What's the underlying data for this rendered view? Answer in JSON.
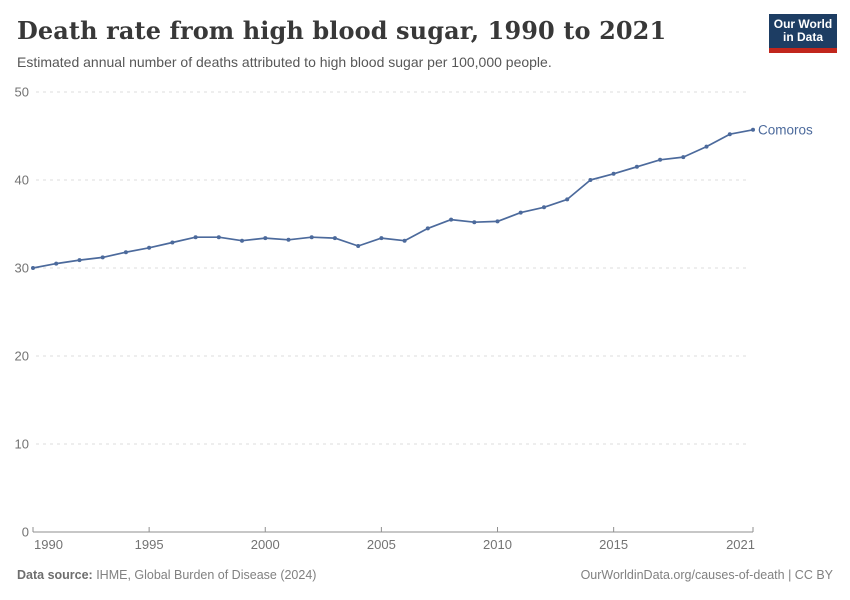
{
  "header": {
    "title": "Death rate from high blood sugar, 1990 to 2021",
    "subtitle": "Estimated annual number of deaths attributed to high blood sugar per 100,000 people.",
    "logo": {
      "line1": "Our World",
      "line2": "in Data"
    }
  },
  "chart_data": {
    "type": "line",
    "title": "Death rate from high blood sugar, 1990 to 2021",
    "xlabel": "",
    "ylabel": "",
    "xlim": [
      1990,
      2021
    ],
    "ylim": [
      0,
      50
    ],
    "grid": "horizontal-dashed",
    "legend_position": "end-of-line-label",
    "x_ticks": [
      1990,
      1995,
      2000,
      2005,
      2010,
      2015,
      2021
    ],
    "y_ticks": [
      0,
      10,
      20,
      30,
      40,
      50
    ],
    "x": [
      1990,
      1991,
      1992,
      1993,
      1994,
      1995,
      1996,
      1997,
      1998,
      1999,
      2000,
      2001,
      2002,
      2003,
      2004,
      2005,
      2006,
      2007,
      2008,
      2009,
      2010,
      2011,
      2012,
      2013,
      2014,
      2015,
      2016,
      2017,
      2018,
      2019,
      2020,
      2021
    ],
    "series": [
      {
        "name": "Comoros",
        "color": "#4C6A9C",
        "values": [
          30.0,
          30.5,
          30.9,
          31.2,
          31.8,
          32.3,
          32.9,
          33.5,
          33.5,
          33.1,
          33.4,
          33.2,
          33.5,
          33.4,
          32.5,
          33.4,
          33.1,
          34.5,
          35.5,
          35.2,
          35.3,
          36.3,
          36.9,
          37.8,
          40.0,
          40.7,
          41.5,
          42.3,
          42.6,
          43.8,
          45.2,
          45.7
        ]
      }
    ],
    "colors": {
      "line": "#4C6A9C",
      "entity_label": "#4C6A9C",
      "gridline": "#dcdcdc",
      "axis_line": "#8f8f8f",
      "tick_text": "#737373"
    }
  },
  "footer": {
    "source_label": "Data source:",
    "source_text": " IHME, Global Burden of Disease (2024)",
    "link_text": "OurWorldinData.org/causes-of-death | CC BY"
  }
}
